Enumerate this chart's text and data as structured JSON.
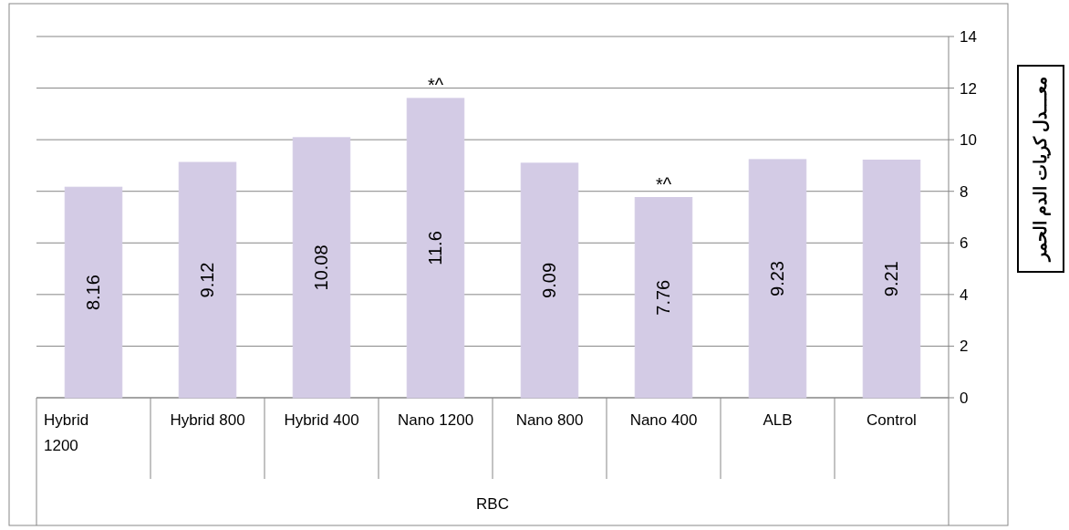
{
  "chart_data": {
    "type": "bar",
    "categories": [
      "Hybrid 1200",
      "Hybrid 800",
      "Hybrid 400",
      "Nano 1200",
      "Nano 800",
      "Nano 400",
      "ALB",
      "Control"
    ],
    "values": [
      8.16,
      9.12,
      10.08,
      11.6,
      9.09,
      7.76,
      9.23,
      9.21
    ],
    "color": "#d3cbe5",
    "xlabel": "RBC",
    "ylabel": "معـــدل كريات الدم الحمر",
    "annotations": [
      {
        "text": "*^",
        "x": "Nano 1200",
        "y": 11.6
      },
      {
        "text": "*^",
        "x": "Nano 400",
        "y": 7.76
      }
    ],
    "ylim": [
      0,
      14
    ],
    "yticks": [
      0,
      2,
      4,
      6,
      8,
      10,
      12,
      14
    ],
    "grid": "y",
    "data_labels": true
  }
}
